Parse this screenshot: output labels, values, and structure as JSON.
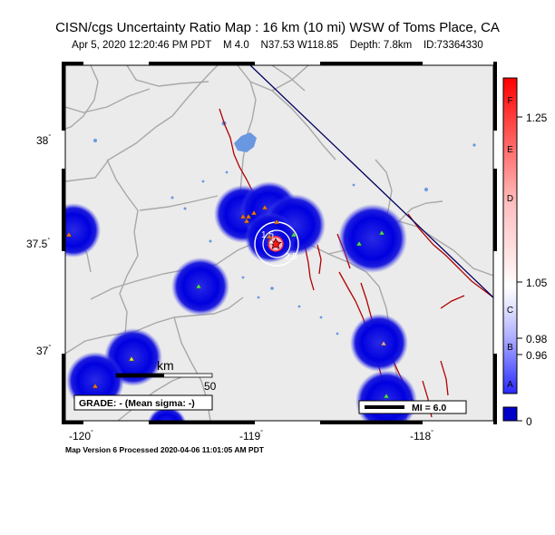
{
  "header": {
    "title": "CISN/cgs Uncertainty Ratio Map : 16 km (10 mi) WSW of Toms Place, CA",
    "event_date": "Apr  5, 2020 12:20:46 PM PDT",
    "magnitude": "M 4.0",
    "location": "N37.53 W118.85",
    "depth": "Depth: 7.8km",
    "event_id": "ID:73364330"
  },
  "axes": {
    "lat_ticks": [
      "38",
      "37.5",
      "37"
    ],
    "lon_ticks": [
      "-120",
      "-119",
      "-118"
    ],
    "degree_symbol": "°"
  },
  "scale_bar": {
    "unit": "km",
    "max_label": "50"
  },
  "grade_box": {
    "text": "GRADE: - (Mean sigma: -)"
  },
  "mi_legend": {
    "text": "MI = 6.0"
  },
  "contour_labels": [
    "1.5",
    "2.5"
  ],
  "colorbar": {
    "letters": [
      "F",
      "E",
      "D",
      "C",
      "B",
      "A"
    ],
    "values": [
      "1.25",
      "1.05",
      "0.98",
      "0.96",
      "0"
    ],
    "colors": {
      "high": "#ff0000",
      "mid": "#ffffff",
      "low": "#0000ff",
      "zero": "#0000c8"
    }
  },
  "footer": {
    "text": "Map Version 6 Processed 2020-04-06 11:01:05 AM PDT"
  },
  "map_colors": {
    "land": "#ebebeb",
    "water": "#6a98e0",
    "fault": "#b00000",
    "border": "#000060",
    "roads": "#a8a8a8",
    "blob": "#0000e0"
  }
}
